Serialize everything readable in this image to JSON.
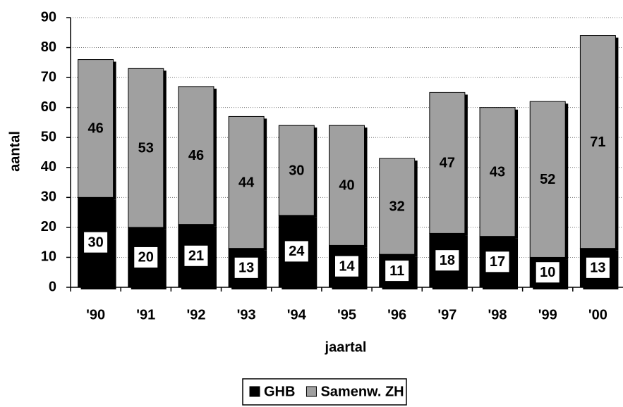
{
  "chart_data": {
    "type": "stacked_bar",
    "x_label": "jaartal",
    "y_label": "aantal",
    "categories": [
      "'90",
      "'91",
      "'92",
      "'93",
      "'94",
      "'95",
      "'96",
      "'97",
      "'98",
      "'99",
      "'00"
    ],
    "series": [
      {
        "name": "GHB",
        "color": "#000000",
        "values": [
          30,
          20,
          21,
          13,
          24,
          14,
          11,
          18,
          17,
          10,
          13
        ]
      },
      {
        "name": "Samenw. ZH",
        "color": "#a0a0a0",
        "values": [
          46,
          53,
          46,
          44,
          30,
          40,
          32,
          47,
          43,
          52,
          71
        ]
      }
    ],
    "ylim": [
      0,
      90
    ],
    "yticks": [
      0,
      10,
      20,
      30,
      40,
      50,
      60,
      70,
      80,
      90
    ],
    "grid": true,
    "legend": "bottom"
  }
}
